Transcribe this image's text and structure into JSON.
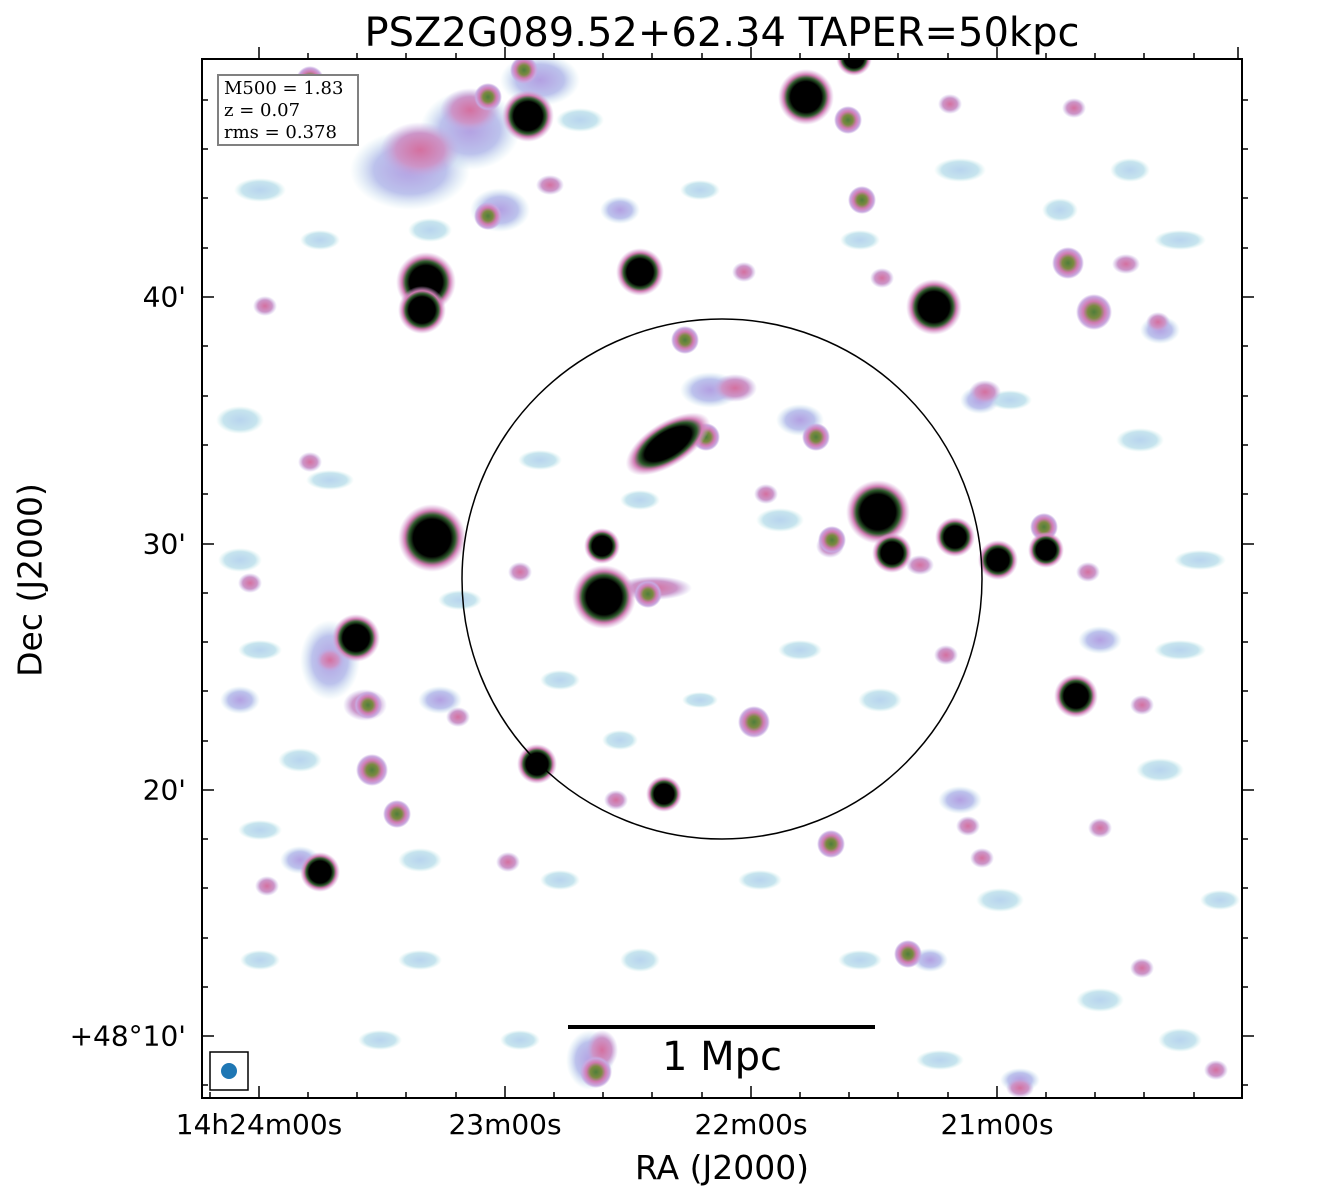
{
  "figure": {
    "title": "PSZ2G089.52+62.34 TAPER=50kpc",
    "xlabel": "RA (J2000)",
    "ylabel": "Dec (J2000)",
    "x_ticks": [
      "14h24m00s",
      "23m00s",
      "22m00s",
      "21m00s"
    ],
    "y_ticks": [
      "40'",
      "30'",
      "20'",
      "+48°10'"
    ],
    "info": {
      "m500": "M500 = 1.83",
      "z": "z = 0.07",
      "rms": "rms = 0.378"
    },
    "scalebar_label": "1 Mpc",
    "colors": {
      "background": "#ffffff",
      "faint_emission": "#bcd9ec",
      "mid_emission": "#b8a4e0",
      "bright_emission": "#d07ab2",
      "peak_emission": "#5d8a3a",
      "saturated": "#000000",
      "beam": "#1f77b4",
      "circle": "#000000"
    },
    "colormap": "cubehelix-like (white → light blue → lavender → pink → green → black)"
  }
}
